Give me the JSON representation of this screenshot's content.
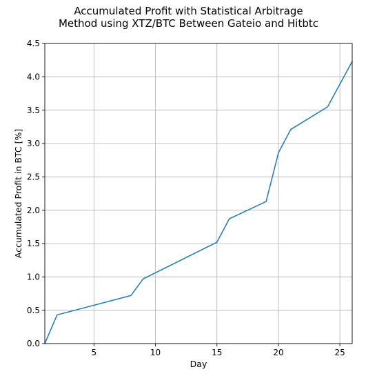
{
  "chart_data": {
    "type": "line",
    "title_lines": [
      "Accumulated Profit with Statistical Arbitrage",
      "Method using XTZ/BTC Between Gateio and Hitbtc"
    ],
    "xlabel": "Day",
    "ylabel": "Accumulated Profit in BTC [%]",
    "xlim": [
      1,
      26
    ],
    "ylim": [
      0,
      4.5
    ],
    "x_ticks": [
      5,
      10,
      15,
      20,
      25
    ],
    "y_ticks": [
      0.0,
      0.5,
      1.0,
      1.5,
      2.0,
      2.5,
      3.0,
      3.5,
      4.0,
      4.5
    ],
    "x_tick_labels": [
      "5",
      "10",
      "15",
      "20",
      "25"
    ],
    "y_tick_labels": [
      "0.0",
      "0.5",
      "1.0",
      "1.5",
      "2.0",
      "2.5",
      "3.0",
      "3.5",
      "4.0",
      "4.5"
    ],
    "grid": true,
    "series": [
      {
        "color": "#1f77b4",
        "x": [
          1,
          2,
          8,
          9,
          15,
          16,
          19,
          20,
          21,
          24,
          26
        ],
        "y": [
          0.0,
          0.43,
          0.72,
          0.97,
          1.52,
          1.87,
          2.13,
          2.86,
          3.21,
          3.55,
          4.23
        ]
      }
    ]
  }
}
